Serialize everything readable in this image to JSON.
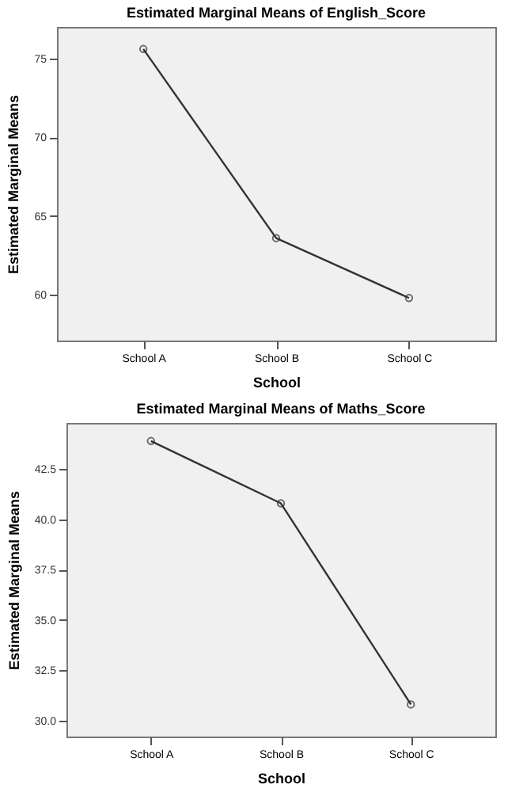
{
  "chart_data": [
    {
      "type": "line",
      "title": "Estimated Marginal Means of English_Score",
      "xlabel": "School",
      "ylabel": "Estimated Marginal Means",
      "categories": [
        "School A",
        "School B",
        "School C"
      ],
      "values": [
        75.6,
        63.6,
        59.8
      ],
      "color": "#333333",
      "marker": "circle",
      "ylim": [
        57.1,
        77
      ],
      "yticks": [
        60,
        65,
        70,
        75
      ]
    },
    {
      "type": "line",
      "title": "Estimated Marginal Means of Maths_Score",
      "xlabel": "School",
      "ylabel": "Estimated Marginal Means",
      "categories": [
        "School A",
        "School B",
        "School C"
      ],
      "values": [
        43.9,
        40.8,
        30.8
      ],
      "color": "#333333",
      "marker": "circle",
      "ylim": [
        29.2,
        44.8
      ],
      "yticks": [
        {
          "value": 30,
          "label": "30.0"
        },
        32.5,
        {
          "value": 35,
          "label": "35.0"
        },
        37.5,
        {
          "value": 40,
          "label": "40.0"
        },
        42.5
      ]
    }
  ]
}
